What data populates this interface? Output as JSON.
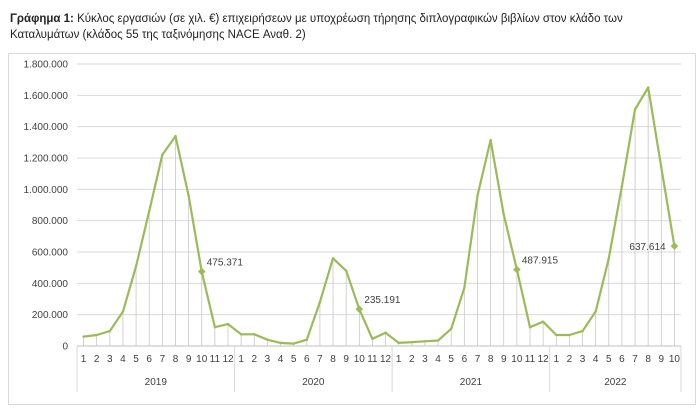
{
  "caption": {
    "lead": "Γράφημα 1:",
    "text": " Κύκλος εργασιών (σε χιλ. €) επιχειρήσεων με υποχρέωση τήρησης διπλογραφικών βιβλίων στον κλάδο των Καταλυμάτων (κλάδος 55 της ταξινόμησης NACE Αναθ. 2)"
  },
  "chart_data": {
    "type": "line",
    "title": "Κύκλος εργασιών (σε χιλ. €) επιχειρήσεων με υποχρέωση τήρησης διπλογραφικών βιβλίων στον κλάδο των Καταλυμάτων (κλάδος 55 της ταξινόμησης NACE Αναθ. 2)",
    "xlabel": "",
    "ylabel": "",
    "ylim": [
      0,
      1800000
    ],
    "yticks": [
      0,
      200000,
      400000,
      600000,
      800000,
      1000000,
      1200000,
      1400000,
      1600000,
      1800000
    ],
    "ytick_labels": [
      "0",
      "200.000",
      "400.000",
      "600.000",
      "800.000",
      "1.000.000",
      "1.200.000",
      "1.400.000",
      "1.600.000",
      "1.800.000"
    ],
    "grid": "horizontal",
    "drop_lines": true,
    "line_color": "#9bbb59",
    "years": [
      {
        "label": "2019",
        "months": [
          "1",
          "2",
          "3",
          "4",
          "5",
          "6",
          "7",
          "8",
          "9",
          "10",
          "11",
          "12"
        ]
      },
      {
        "label": "2020",
        "months": [
          "1",
          "2",
          "3",
          "4",
          "5",
          "6",
          "7",
          "8",
          "9",
          "10",
          "11",
          "12"
        ]
      },
      {
        "label": "2021",
        "months": [
          "1",
          "2",
          "3",
          "4",
          "5",
          "6",
          "7",
          "8",
          "9",
          "10",
          "11",
          "12"
        ]
      },
      {
        "label": "2022",
        "months": [
          "1",
          "2",
          "3",
          "4",
          "5",
          "6",
          "7",
          "8",
          "9",
          "10"
        ]
      }
    ],
    "series": [
      {
        "values": [
          60000,
          70000,
          95000,
          220000,
          510000,
          860000,
          1220000,
          1340000,
          960000,
          475371,
          120000,
          140000,
          75000,
          75000,
          40000,
          20000,
          15000,
          40000,
          280000,
          560000,
          480000,
          235191,
          45000,
          85000,
          20000,
          25000,
          30000,
          35000,
          110000,
          370000,
          960000,
          1315000,
          840000,
          487915,
          120000,
          155000,
          70000,
          70000,
          95000,
          220000,
          560000,
          1020000,
          1510000,
          1650000,
          1140000,
          637614
        ]
      }
    ],
    "data_labels": [
      {
        "index": 9,
        "text": "475.371"
      },
      {
        "index": 21,
        "text": "235.191"
      },
      {
        "index": 33,
        "text": "487.915"
      },
      {
        "index": 45,
        "text": "637.614"
      }
    ]
  }
}
